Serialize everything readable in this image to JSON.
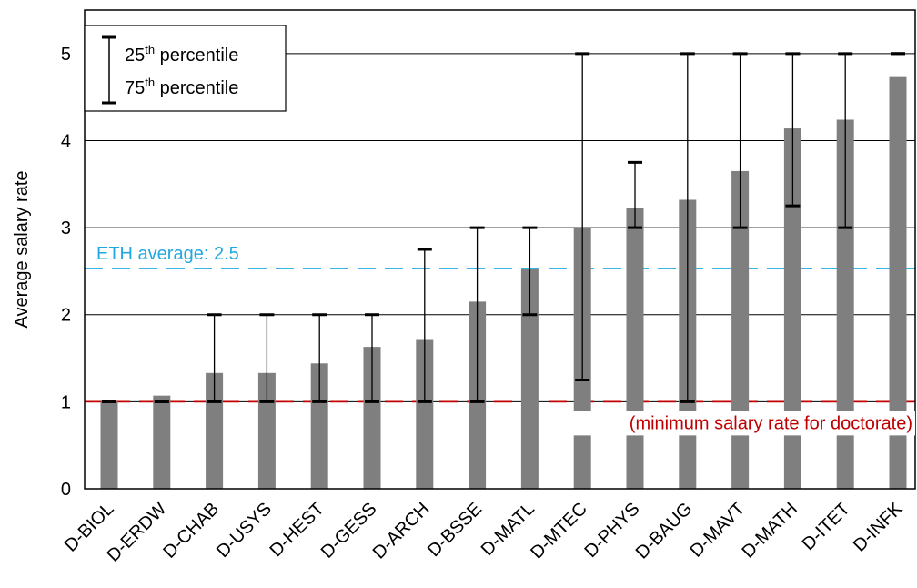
{
  "chart_data": {
    "type": "bar",
    "title": "",
    "xlabel": "",
    "ylabel": "Average salary rate",
    "ylim": [
      0,
      5.5
    ],
    "yticks": [
      "0",
      "1",
      "2",
      "3",
      "4",
      "5"
    ],
    "grid": true,
    "categories": [
      "D-BIOL",
      "D-ERDW",
      "D-CHAB",
      "D-USYS",
      "D-HEST",
      "D-GESS",
      "D-ARCH",
      "D-BSSE",
      "D-MATL",
      "D-MTEC",
      "D-PHYS",
      "D-BAUG",
      "D-MAVT",
      "D-MATH",
      "D-ITET",
      "D-INFK"
    ],
    "values": [
      1.0,
      1.07,
      1.33,
      1.33,
      1.44,
      1.63,
      1.72,
      2.15,
      2.53,
      3.0,
      3.23,
      3.32,
      3.65,
      4.14,
      4.24,
      4.73
    ],
    "p25": [
      1.0,
      1.0,
      1.0,
      1.0,
      1.0,
      1.0,
      1.0,
      1.0,
      2.0,
      1.25,
      3.0,
      1.0,
      3.0,
      3.25,
      3.0,
      5.0
    ],
    "p75": [
      1.0,
      1.0,
      2.0,
      2.0,
      2.0,
      2.0,
      2.75,
      3.0,
      3.0,
      5.0,
      3.75,
      5.0,
      5.0,
      5.0,
      5.0,
      5.0
    ],
    "bar_color": "#7f7f7f",
    "error_bar_color": "#000000",
    "legend": {
      "placement": "top-left",
      "line1_num": "25",
      "line1_sup": "th",
      "line1_text": " percentile",
      "line2_num": "75",
      "line2_sup": "th",
      "line2_text": " percentile"
    },
    "reference_lines": [
      {
        "value": 2.53,
        "label": "ETH average: 2.5",
        "color": "#1fa8e0",
        "style": "dashed"
      },
      {
        "value": 1.0,
        "label": "(minimum salary rate for doctorate)",
        "color": "#c00000",
        "style": "dashed"
      }
    ]
  }
}
